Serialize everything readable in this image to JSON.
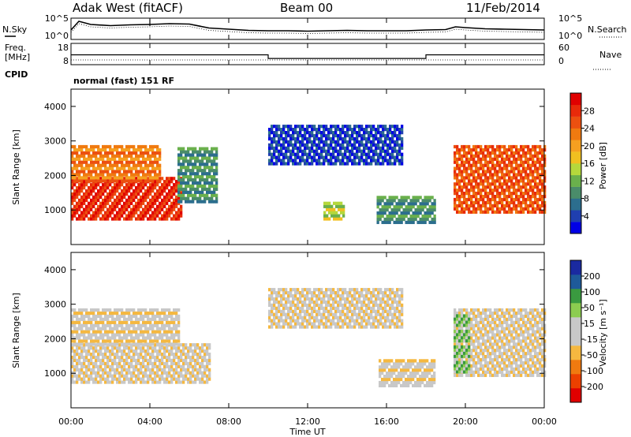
{
  "header": {
    "station": "Adak West (fitACF)",
    "beam": "Beam 00",
    "date": "11/Feb/2014"
  },
  "strip": {
    "nsky_label": "N.Sky",
    "nsearch_label": "N.Search",
    "freq_label_1": "Freq.",
    "freq_label_2": "[MHz]",
    "nave_label": "Nave",
    "cpid_label": "CPID",
    "noise_ticks_left": [
      "10^5",
      "10^0"
    ],
    "noise_ticks_right": [
      "10^5",
      "10^0"
    ],
    "freq_ticks": [
      "18",
      "8"
    ],
    "nave_ticks": [
      "60",
      "0"
    ],
    "cpid_text": "normal (fast) 151 RF"
  },
  "axes": {
    "x_ticks": [
      "00:00",
      "04:00",
      "08:00",
      "12:00",
      "16:00",
      "20:00",
      "00:00"
    ],
    "x_label": "Time UT",
    "y_label": "Slant Range [km]",
    "y_ticks": [
      "4000",
      "3000",
      "2000",
      "1000"
    ]
  },
  "colorbar_power": {
    "label": "Power [dB]",
    "ticks": [
      "28",
      "24",
      "20",
      "16",
      "12",
      "8",
      "4"
    ]
  },
  "colorbar_velocity": {
    "label": "Velocity [m s⁻¹]",
    "ticks": [
      "200",
      "100",
      "50",
      "15",
      "-15",
      "-50",
      "-100",
      "-200"
    ]
  },
  "colors": {
    "power": [
      "#0000e6",
      "#1f3fb0",
      "#2c6e8e",
      "#4a8c6a",
      "#6ab04c",
      "#b5d83c",
      "#f0c020",
      "#f5a020",
      "#f07a10",
      "#ec5010",
      "#e82a0a",
      "#e00000"
    ],
    "velocity": [
      "#e00000",
      "#ec4000",
      "#f07a10",
      "#f5b840",
      "#c8c8c8",
      "#c8c8c8",
      "#8ccc50",
      "#3a9a40",
      "#1e5a9a",
      "#1a2aa0"
    ]
  },
  "chart_data": [
    {
      "type": "line",
      "title": "N.Sky / N.Search",
      "x_range_hours": [
        0,
        24
      ],
      "series": [
        {
          "x": [
            0,
            0.4,
            1,
            2,
            3,
            4,
            5,
            6,
            7,
            8,
            9,
            10,
            11,
            12,
            13,
            14,
            15,
            16,
            17,
            18,
            19,
            19.5,
            20,
            21,
            22,
            23,
            24
          ],
          "y": [
            2.2,
            4.4,
            3.6,
            3.3,
            3.5,
            3.6,
            3.8,
            3.7,
            2.7,
            2.4,
            2.1,
            2.0,
            2.0,
            1.9,
            2.0,
            2.1,
            2.0,
            2.0,
            2.0,
            2.2,
            2.3,
            3.0,
            2.8,
            2.5,
            2.4,
            2.3,
            2.2
          ]
        }
      ]
    },
    {
      "type": "line",
      "title": "Freq. / Nave",
      "x_range_hours": [
        0,
        24
      ],
      "series": [
        {
          "x": [
            0,
            10,
            10,
            18,
            18,
            24
          ],
          "y": [
            13,
            13,
            11,
            11,
            13,
            13
          ]
        }
      ]
    },
    {
      "type": "heatmap",
      "title": "Power [dB]",
      "xlabel": "Time UT",
      "ylabel": "Slant Range [km]",
      "x_range_hours": [
        0,
        24
      ],
      "ylim": [
        0,
        4500
      ],
      "color_range": [
        0,
        30
      ],
      "regions": [
        {
          "t0": 0.0,
          "t1": 5.6,
          "r0": 700,
          "r1": 1900,
          "level": 10
        },
        {
          "t0": 0.0,
          "t1": 4.5,
          "r0": 1800,
          "r1": 2800,
          "level": 8
        },
        {
          "t0": 5.4,
          "t1": 7.4,
          "r0": 1200,
          "r1": 2800,
          "level": 3
        },
        {
          "t0": 10.0,
          "t1": 16.8,
          "r0": 2300,
          "r1": 3400,
          "level": 1
        },
        {
          "t0": 12.8,
          "t1": 13.8,
          "r0": 700,
          "r1": 1200,
          "level": 5
        },
        {
          "t0": 15.5,
          "t1": 18.4,
          "r0": 600,
          "r1": 1400,
          "level": 3
        },
        {
          "t0": 19.4,
          "t1": 24.0,
          "r0": 900,
          "r1": 2800,
          "level": 9
        }
      ]
    },
    {
      "type": "heatmap",
      "title": "Velocity [m s⁻¹]",
      "xlabel": "Time UT",
      "ylabel": "Slant Range [km]",
      "x_range_hours": [
        0,
        24
      ],
      "ylim": [
        0,
        4500
      ],
      "color_range": [
        -200,
        200
      ],
      "regions": [
        {
          "t0": 0.0,
          "t1": 7.0,
          "r0": 700,
          "r1": 1800,
          "level": 4
        },
        {
          "t0": 0.0,
          "t1": 5.5,
          "r0": 1800,
          "r1": 2800,
          "level": 4
        },
        {
          "t0": 10.0,
          "t1": 16.8,
          "r0": 2300,
          "r1": 3400,
          "level": 4
        },
        {
          "t0": 15.6,
          "t1": 18.4,
          "r0": 600,
          "r1": 1400,
          "level": 4
        },
        {
          "t0": 19.4,
          "t1": 24.0,
          "r0": 900,
          "r1": 2800,
          "level": 4
        },
        {
          "t0": 19.4,
          "t1": 20.2,
          "r0": 1000,
          "r1": 2800,
          "level": 6
        }
      ]
    }
  ]
}
